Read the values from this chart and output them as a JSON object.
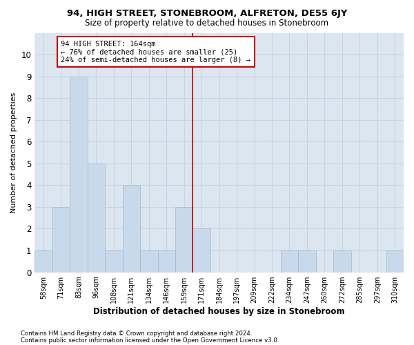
{
  "title1": "94, HIGH STREET, STONEBROOM, ALFRETON, DE55 6JY",
  "title2": "Size of property relative to detached houses in Stonebroom",
  "xlabel": "Distribution of detached houses by size in Stonebroom",
  "ylabel": "Number of detached properties",
  "categories": [
    "58sqm",
    "71sqm",
    "83sqm",
    "96sqm",
    "108sqm",
    "121sqm",
    "134sqm",
    "146sqm",
    "159sqm",
    "171sqm",
    "184sqm",
    "197sqm",
    "209sqm",
    "222sqm",
    "234sqm",
    "247sqm",
    "260sqm",
    "272sqm",
    "285sqm",
    "297sqm",
    "310sqm"
  ],
  "values": [
    1,
    3,
    9,
    5,
    1,
    4,
    1,
    1,
    3,
    2,
    0,
    0,
    0,
    0,
    1,
    1,
    0,
    1,
    0,
    0,
    1
  ],
  "bar_color": "#c9d9ec",
  "bar_edge_color": "#a0b8d0",
  "grid_color": "#c8d4e3",
  "background_color": "#dce6f0",
  "annotation_text": "94 HIGH STREET: 164sqm\n← 76% of detached houses are smaller (25)\n24% of semi-detached houses are larger (8) →",
  "vline_x_index": 8.5,
  "vline_color": "#cc0000",
  "annotation_box_color": "#ffffff",
  "annotation_box_edge": "#cc0000",
  "ylim": [
    0,
    11
  ],
  "yticks": [
    0,
    1,
    2,
    3,
    4,
    5,
    6,
    7,
    8,
    9,
    10,
    11
  ],
  "footer1": "Contains HM Land Registry data © Crown copyright and database right 2024.",
  "footer2": "Contains public sector information licensed under the Open Government Licence v3.0."
}
